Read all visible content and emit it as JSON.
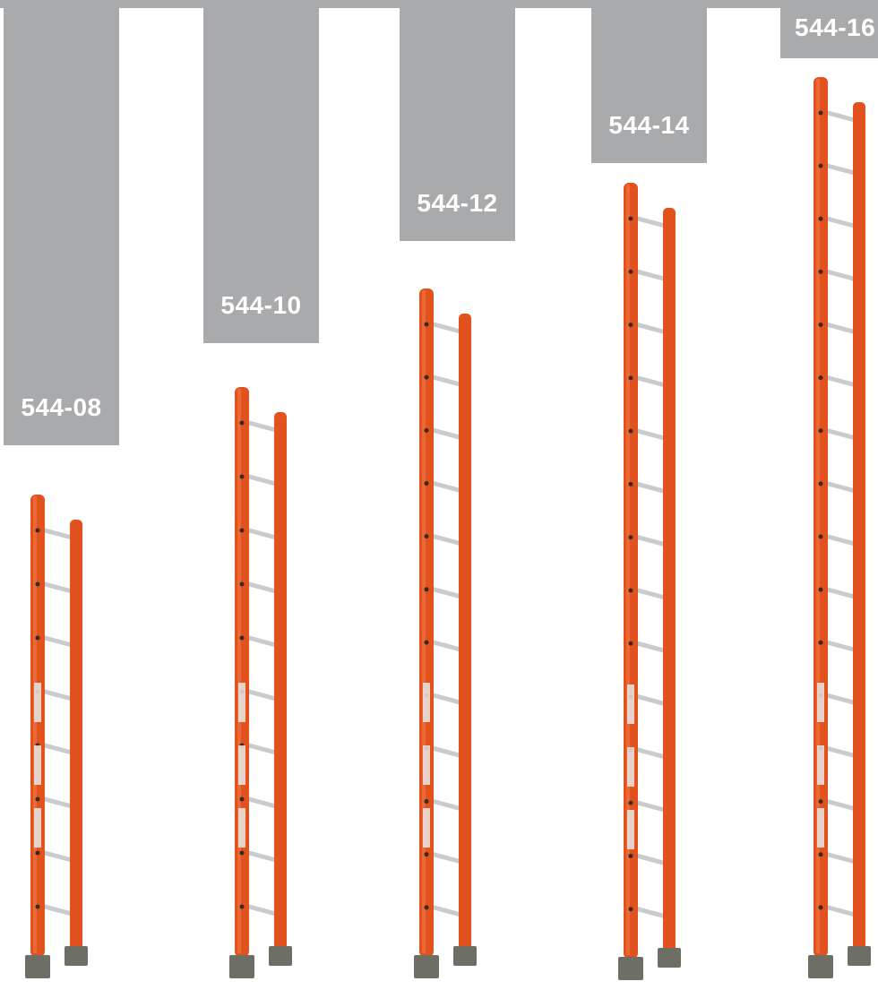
{
  "colors": {
    "label_bar": "#a9aaac",
    "label_text": "#ffffff",
    "rail": "#e2521f",
    "rung": "#c9cccf",
    "foot": "#6d6f64"
  },
  "ladders": [
    {
      "model": "544-08",
      "rungs": 8,
      "icon": "fiberglass-extension-ladder-icon"
    },
    {
      "model": "544-10",
      "rungs": 10,
      "icon": "fiberglass-extension-ladder-icon"
    },
    {
      "model": "544-12",
      "rungs": 12,
      "icon": "fiberglass-extension-ladder-icon"
    },
    {
      "model": "544-14",
      "rungs": 14,
      "icon": "fiberglass-extension-ladder-icon"
    },
    {
      "model": "544-16",
      "rungs": 16,
      "icon": "fiberglass-extension-ladder-icon"
    }
  ]
}
